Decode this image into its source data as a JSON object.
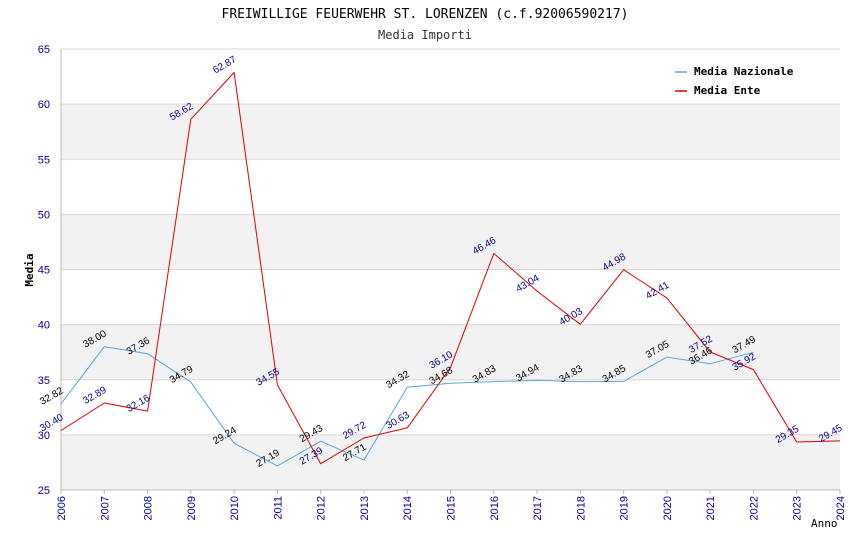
{
  "chart_data": {
    "type": "line",
    "title": "FREIWILLIGE FEUERWEHR ST. LORENZEN (c.f.92006590217)",
    "subtitle": "Media Importi",
    "xlabel": "Anno",
    "ylabel": "Media",
    "ylim": [
      25,
      65
    ],
    "ytick_step": 5,
    "x": [
      "2006",
      "2007",
      "2008",
      "2009",
      "2010",
      "2011",
      "2012",
      "2013",
      "2014",
      "2015",
      "2016",
      "2017",
      "2018",
      "2019",
      "2020",
      "2021",
      "2022",
      "2023",
      "2024"
    ],
    "grid": true,
    "legend_position": "top-right",
    "series": [
      {
        "name": "Media Nazionale",
        "color": "#5ba3e0",
        "label_color": "#000000",
        "values": [
          32.82,
          38.0,
          37.36,
          34.79,
          29.24,
          27.19,
          29.43,
          27.71,
          34.32,
          34.68,
          34.83,
          34.94,
          34.83,
          34.85,
          37.05,
          36.46,
          37.49,
          null,
          null
        ],
        "labels": [
          "32.82",
          "38.00",
          "37.36",
          "34.79",
          "29.24",
          "27.19",
          "29.43",
          "27.71",
          "34.32",
          "34.68",
          "34.83",
          "34.94",
          "34.83",
          "34.85",
          "37.05",
          "36.46",
          "37.49",
          null,
          null
        ]
      },
      {
        "name": "Media Ente",
        "color": "#e00000",
        "label_color": "#00008b",
        "values": [
          30.4,
          32.89,
          32.16,
          58.62,
          62.87,
          34.55,
          27.39,
          29.72,
          30.63,
          36.1,
          46.46,
          43.04,
          40.03,
          44.98,
          42.41,
          37.52,
          35.92,
          29.35,
          29.45
        ],
        "labels": [
          "30.40",
          "32.89",
          "32.16",
          "58.62",
          "62.87",
          "34.55",
          "27.39",
          "29.72",
          "30.63",
          "36.10",
          "46.46",
          "43.04",
          "40.03",
          "44.98",
          "42.41",
          "37.52",
          "35.92",
          "29.35",
          "29.45"
        ]
      }
    ]
  }
}
